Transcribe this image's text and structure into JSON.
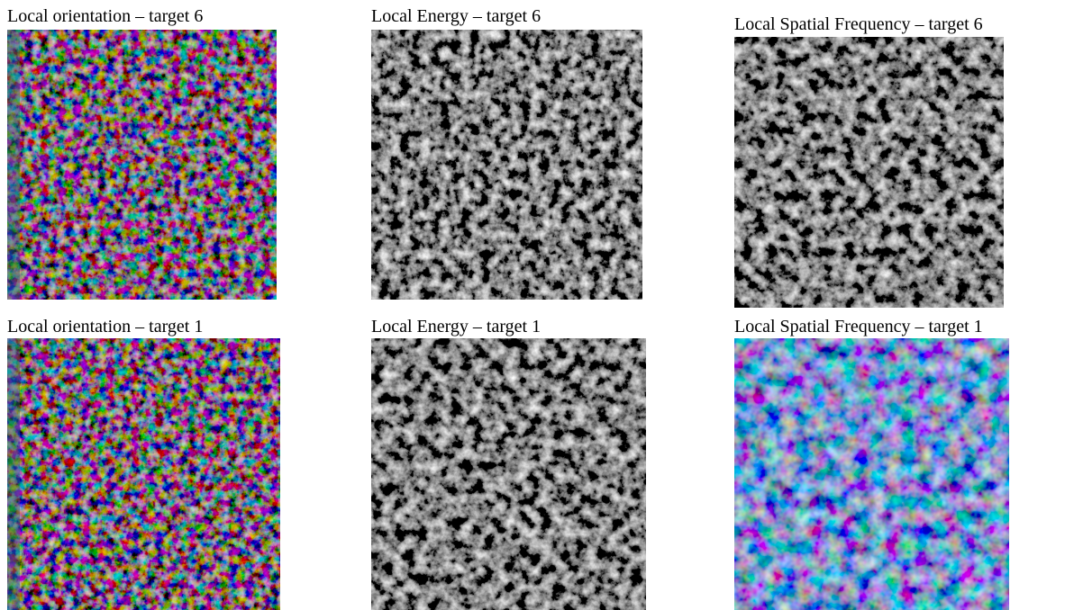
{
  "panels": [
    {
      "caption": "Local orientation – target 6"
    },
    {
      "caption": "Local Energy – target 6"
    },
    {
      "caption": "Local Spatial Frequency – target 6"
    },
    {
      "caption": "Local orientation – target 1"
    },
    {
      "caption": "Local Energy – target 1"
    },
    {
      "caption": "Local Spatial Frequency – target 1"
    }
  ]
}
